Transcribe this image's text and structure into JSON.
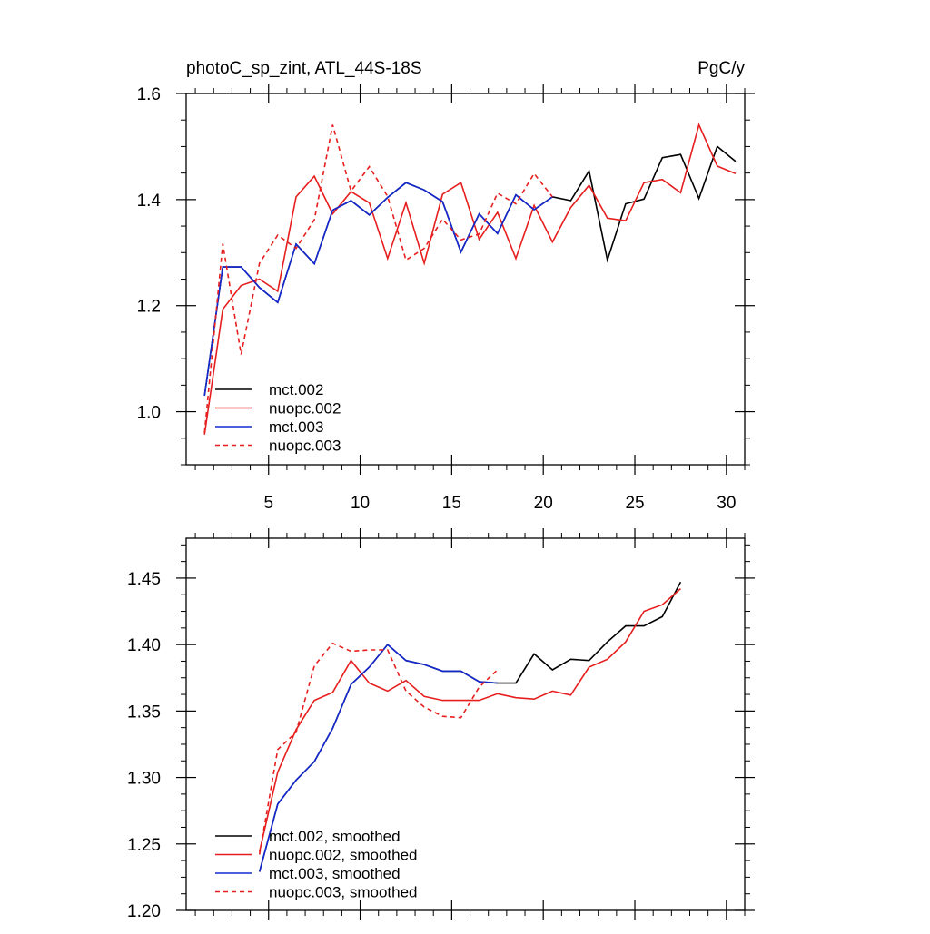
{
  "colors": {
    "black": "#000000",
    "red": "#e61e1e",
    "blue": "#1428d2"
  },
  "chart_data": [
    {
      "type": "line",
      "title": "photoC_sp_zint, ATL_44S-18S",
      "units": "PgC/y",
      "xlabel": "",
      "ylabel": "",
      "xlim": [
        0.5,
        31.0
      ],
      "ylim": [
        0.9,
        1.6
      ],
      "xticks": [
        5,
        10,
        15,
        20,
        25,
        30
      ],
      "yticks": [
        1.0,
        1.2,
        1.4,
        1.6
      ],
      "ytick_labels": [
        "1.0",
        "1.2",
        "1.4",
        "1.6"
      ],
      "show_x_tick_labels": true,
      "legend_position": "bottom-left",
      "series": [
        {
          "name": "mct.002",
          "color": "#000000",
          "dash": false,
          "x": [
            1.5,
            2.5,
            3.5,
            4.5,
            5.5,
            6.5,
            7.5,
            8.5,
            9.5,
            10.5,
            11.5,
            12.5,
            13.5,
            14.5,
            15.5,
            16.5,
            17.5,
            18.5,
            19.5,
            20.5,
            21.5,
            22.5,
            23.5,
            24.5,
            25.5,
            26.5,
            27.5,
            28.5,
            29.5,
            30.5
          ],
          "values": [
            1.03,
            1.273,
            1.273,
            1.234,
            1.206,
            1.316,
            1.279,
            1.38,
            1.398,
            1.371,
            1.404,
            1.432,
            1.418,
            1.396,
            1.301,
            1.373,
            1.336,
            1.409,
            1.381,
            1.405,
            1.398,
            1.454,
            1.286,
            1.392,
            1.401,
            1.479,
            1.485,
            1.402,
            1.5,
            1.472
          ]
        },
        {
          "name": "nuopc.002",
          "color": "#e61e1e",
          "dash": false,
          "x": [
            1.5,
            2.5,
            3.5,
            4.5,
            5.5,
            6.5,
            7.5,
            8.5,
            9.5,
            10.5,
            11.5,
            12.5,
            13.5,
            14.5,
            15.5,
            16.5,
            17.5,
            18.5,
            19.5,
            20.5,
            21.5,
            22.5,
            23.5,
            24.5,
            25.5,
            26.5,
            27.5,
            28.5,
            29.5,
            30.5
          ],
          "values": [
            0.957,
            1.193,
            1.238,
            1.25,
            1.227,
            1.405,
            1.444,
            1.373,
            1.415,
            1.394,
            1.289,
            1.394,
            1.28,
            1.41,
            1.432,
            1.325,
            1.376,
            1.289,
            1.389,
            1.32,
            1.385,
            1.427,
            1.365,
            1.36,
            1.432,
            1.438,
            1.413,
            1.541,
            1.463,
            1.449
          ]
        },
        {
          "name": "mct.003",
          "color": "#1428d2",
          "dash": false,
          "x": [
            1.5,
            2.5,
            3.5,
            4.5,
            5.5,
            6.5,
            7.5,
            8.5,
            9.5,
            10.5,
            11.5,
            12.5,
            13.5,
            14.5,
            15.5,
            16.5,
            17.5,
            18.5,
            19.5,
            20.5
          ],
          "values": [
            1.03,
            1.273,
            1.273,
            1.234,
            1.206,
            1.316,
            1.279,
            1.38,
            1.398,
            1.371,
            1.404,
            1.432,
            1.418,
            1.396,
            1.301,
            1.373,
            1.336,
            1.409,
            1.381,
            1.405
          ]
        },
        {
          "name": "nuopc.003",
          "color": "#e61e1e",
          "dash": true,
          "x": [
            1.5,
            2.5,
            3.5,
            4.5,
            5.5,
            6.5,
            7.5,
            8.5,
            9.5,
            10.5,
            11.5,
            12.5,
            13.5,
            14.5,
            15.5,
            16.5,
            17.5,
            18.5,
            19.5,
            20.5
          ],
          "values": [
            0.96,
            1.317,
            1.108,
            1.28,
            1.333,
            1.308,
            1.362,
            1.541,
            1.416,
            1.462,
            1.406,
            1.286,
            1.308,
            1.363,
            1.324,
            1.335,
            1.412,
            1.392,
            1.449,
            1.405
          ]
        }
      ]
    },
    {
      "type": "line",
      "title": "",
      "xlabel": "",
      "ylabel": "",
      "xlim": [
        0.5,
        31.0
      ],
      "ylim": [
        1.2,
        1.48
      ],
      "xticks": [
        5,
        10,
        15,
        20,
        25,
        30
      ],
      "yticks": [
        1.2,
        1.25,
        1.3,
        1.35,
        1.4,
        1.45
      ],
      "ytick_labels": [
        "1.20",
        "1.25",
        "1.30",
        "1.35",
        "1.40",
        "1.45"
      ],
      "show_x_tick_labels": false,
      "legend_position": "bottom-left",
      "series": [
        {
          "name": "mct.002, smoothed",
          "color": "#000000",
          "dash": false,
          "x": [
            4.5,
            5.5,
            6.5,
            7.5,
            8.5,
            9.5,
            10.5,
            11.5,
            12.5,
            13.5,
            14.5,
            15.5,
            16.5,
            17.5,
            18.5,
            19.5,
            20.5,
            21.5,
            22.5,
            23.5,
            24.5,
            25.5,
            26.5,
            27.5
          ],
          "values": [
            1.229,
            1.28,
            1.298,
            1.312,
            1.337,
            1.37,
            1.383,
            1.4,
            1.388,
            1.385,
            1.38,
            1.38,
            1.372,
            1.371,
            1.371,
            1.393,
            1.381,
            1.389,
            1.388,
            1.402,
            1.414,
            1.414,
            1.421,
            1.447
          ]
        },
        {
          "name": "nuopc.002, smoothed",
          "color": "#e61e1e",
          "dash": false,
          "x": [
            4.5,
            5.5,
            6.5,
            7.5,
            8.5,
            9.5,
            10.5,
            11.5,
            12.5,
            13.5,
            14.5,
            15.5,
            16.5,
            17.5,
            18.5,
            19.5,
            20.5,
            21.5,
            22.5,
            23.5,
            24.5,
            25.5,
            26.5,
            27.5
          ],
          "values": [
            1.244,
            1.304,
            1.336,
            1.358,
            1.364,
            1.388,
            1.371,
            1.365,
            1.373,
            1.361,
            1.358,
            1.358,
            1.358,
            1.363,
            1.36,
            1.359,
            1.365,
            1.362,
            1.383,
            1.389,
            1.402,
            1.425,
            1.43,
            1.442
          ]
        },
        {
          "name": "mct.003, smoothed",
          "color": "#1428d2",
          "dash": false,
          "x": [
            4.5,
            5.5,
            6.5,
            7.5,
            8.5,
            9.5,
            10.5,
            11.5,
            12.5,
            13.5,
            14.5,
            15.5,
            16.5,
            17.5
          ],
          "values": [
            1.229,
            1.28,
            1.298,
            1.312,
            1.337,
            1.37,
            1.383,
            1.4,
            1.388,
            1.385,
            1.38,
            1.38,
            1.372,
            1.371
          ]
        },
        {
          "name": "nuopc.003, smoothed",
          "color": "#e61e1e",
          "dash": true,
          "x": [
            4.5,
            5.5,
            6.5,
            7.5,
            8.5,
            9.5,
            10.5,
            11.5,
            12.5,
            13.5,
            14.5,
            15.5,
            16.5,
            17.5
          ],
          "values": [
            1.242,
            1.321,
            1.334,
            1.384,
            1.401,
            1.395,
            1.396,
            1.396,
            1.365,
            1.353,
            1.346,
            1.345,
            1.368,
            1.381
          ]
        }
      ]
    }
  ]
}
